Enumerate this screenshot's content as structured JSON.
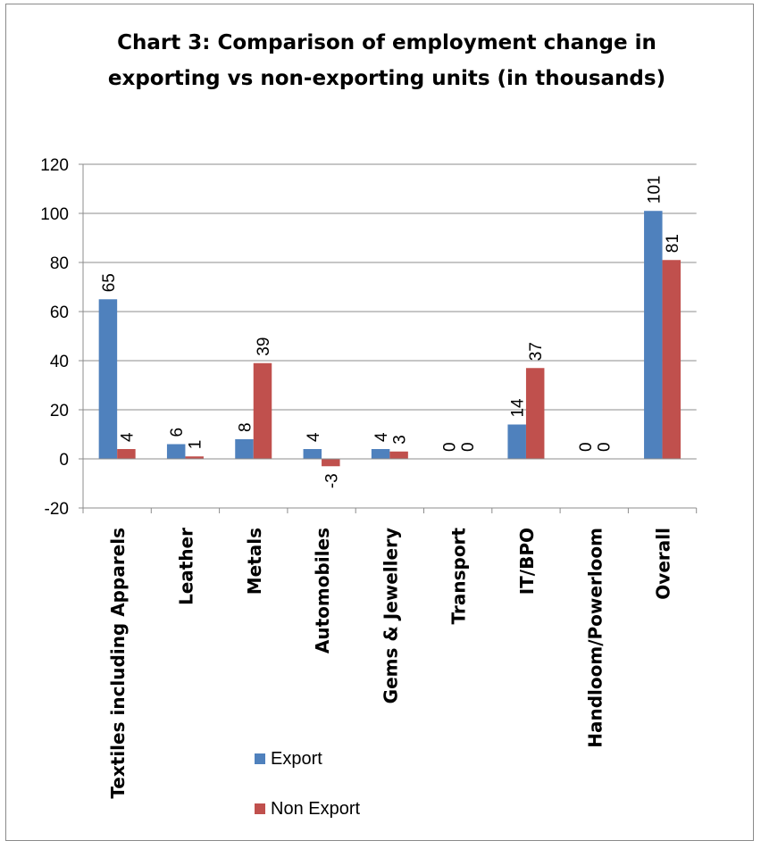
{
  "chart_data": {
    "type": "bar",
    "title_lines": [
      "Chart 3: Comparison of employment change in",
      "exporting vs non-exporting units (in thousands)"
    ],
    "categories": [
      "Textiles including Apparels",
      "Leather",
      "Metals",
      "Automobiles",
      "Gems & Jewellery",
      "Transport",
      "IT/BPO",
      "Handloom/Powerloom",
      "Overall"
    ],
    "series": [
      {
        "name": "Export",
        "color": "#4f81bd",
        "values": [
          65,
          6,
          8,
          4,
          4,
          0,
          14,
          0,
          101
        ]
      },
      {
        "name": "Non Export",
        "color": "#c0504d",
        "values": [
          4,
          1,
          39,
          -3,
          3,
          0,
          37,
          0,
          81
        ]
      }
    ],
    "ylim": [
      -20,
      120
    ],
    "yticks": [
      -20,
      0,
      20,
      40,
      60,
      80,
      100,
      120
    ],
    "grid": true,
    "legend_position": "bottom-center",
    "data_labels": true
  }
}
